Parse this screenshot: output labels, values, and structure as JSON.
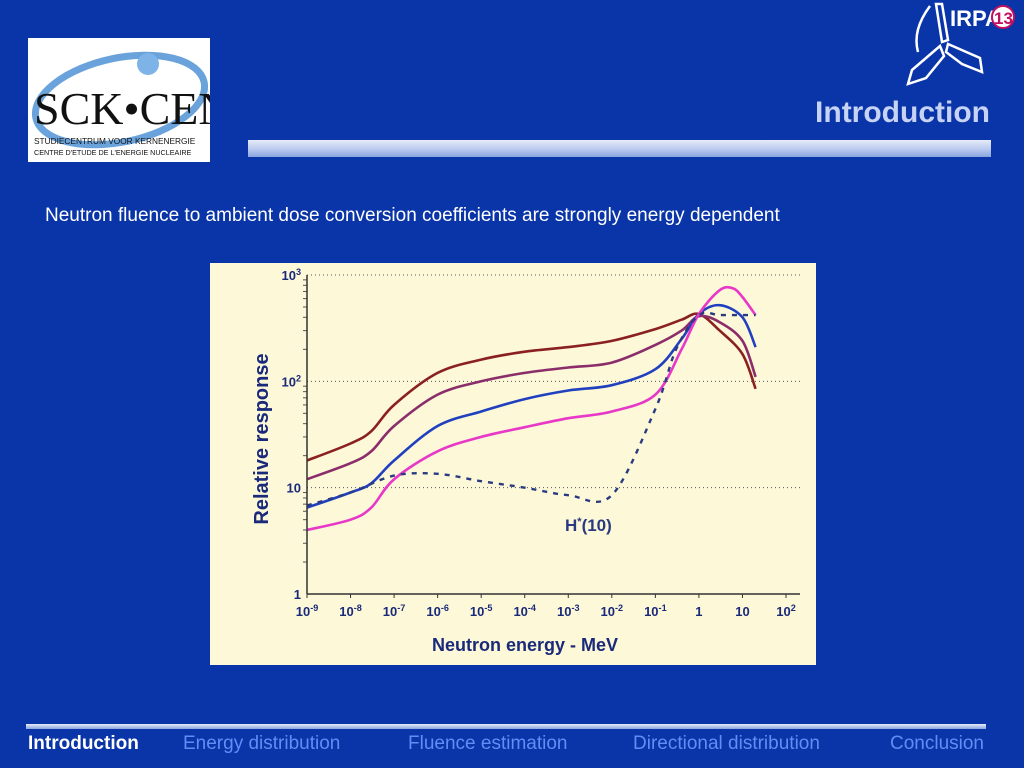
{
  "logo": {
    "name": "SCK•CEN",
    "line1": "STUDIECENTRUM VOOR KERNENERGIE",
    "line2": "CENTRE D'ETUDE DE L'ENERGIE NUCLEAIRE"
  },
  "irpa": {
    "text": "IRPA",
    "number": "13"
  },
  "header": {
    "title": "Introduction"
  },
  "body": {
    "subtitle": "Neutron fluence to ambient dose conversion coefficients are strongly energy dependent"
  },
  "chart_data": {
    "type": "line",
    "xlabel": "Neutron energy - MeV",
    "ylabel": "Relative response",
    "x_scale": "log",
    "y_scale": "log",
    "xlim": [
      1e-09,
      100
    ],
    "ylim": [
      1,
      1000
    ],
    "x_ticks": [
      "10-9",
      "10-8",
      "10-7",
      "10-6",
      "10-5",
      "10-4",
      "10-3",
      "10-2",
      "10-1",
      "1",
      "10",
      "102"
    ],
    "y_ticks": [
      "1",
      "10",
      "102",
      "103"
    ],
    "annotation": "H*(10)",
    "series": [
      {
        "color": "#8b2020",
        "style": "solid",
        "points": [
          [
            1e-09,
            18
          ],
          [
            1e-08,
            26
          ],
          [
            3e-08,
            34
          ],
          [
            1e-07,
            60
          ],
          [
            1e-06,
            120
          ],
          [
            1e-05,
            160
          ],
          [
            0.0001,
            190
          ],
          [
            0.001,
            210
          ],
          [
            0.01,
            240
          ],
          [
            0.1,
            310
          ],
          [
            0.4,
            380
          ],
          [
            1,
            430
          ],
          [
            3,
            300
          ],
          [
            10,
            180
          ],
          [
            20,
            85
          ]
        ]
      },
      {
        "color": "#8b2d6b",
        "style": "solid",
        "points": [
          [
            1e-09,
            12
          ],
          [
            1e-08,
            17
          ],
          [
            3e-08,
            22
          ],
          [
            1e-07,
            38
          ],
          [
            1e-06,
            75
          ],
          [
            1e-05,
            100
          ],
          [
            0.0001,
            120
          ],
          [
            0.001,
            135
          ],
          [
            0.01,
            150
          ],
          [
            0.1,
            220
          ],
          [
            0.4,
            300
          ],
          [
            1,
            410
          ],
          [
            3,
            360
          ],
          [
            10,
            240
          ],
          [
            20,
            110
          ]
        ]
      },
      {
        "color": "#2040c0",
        "style": "solid",
        "points": [
          [
            1e-09,
            6.5
          ],
          [
            1e-08,
            9
          ],
          [
            3e-08,
            11
          ],
          [
            1e-07,
            18
          ],
          [
            1e-06,
            38
          ],
          [
            1e-05,
            52
          ],
          [
            0.0001,
            68
          ],
          [
            0.001,
            82
          ],
          [
            0.01,
            92
          ],
          [
            0.1,
            130
          ],
          [
            0.4,
            250
          ],
          [
            1,
            430
          ],
          [
            3,
            520
          ],
          [
            10,
            400
          ],
          [
            20,
            210
          ]
        ]
      },
      {
        "color": "#e838c8",
        "style": "solid",
        "points": [
          [
            1e-09,
            4
          ],
          [
            1e-08,
            5
          ],
          [
            3e-08,
            6.5
          ],
          [
            1e-07,
            12
          ],
          [
            1e-06,
            22
          ],
          [
            1e-05,
            30
          ],
          [
            0.0001,
            37
          ],
          [
            0.001,
            45
          ],
          [
            0.01,
            52
          ],
          [
            0.1,
            75
          ],
          [
            0.4,
            200
          ],
          [
            1,
            430
          ],
          [
            3,
            720
          ],
          [
            6,
            750
          ],
          [
            10,
            620
          ],
          [
            20,
            420
          ]
        ]
      },
      {
        "color": "#2a3a80",
        "style": "dashed",
        "name": "H*(10)",
        "points": [
          [
            1e-09,
            6.8
          ],
          [
            1e-08,
            9
          ],
          [
            1e-07,
            13
          ],
          [
            1e-06,
            13.5
          ],
          [
            1e-05,
            11.5
          ],
          [
            0.0001,
            10
          ],
          [
            0.001,
            8.5
          ],
          [
            0.01,
            8.5
          ],
          [
            0.1,
            55
          ],
          [
            0.3,
            200
          ],
          [
            1,
            420
          ],
          [
            3,
            420
          ],
          [
            10,
            420
          ],
          [
            20,
            420
          ]
        ]
      }
    ]
  },
  "footer": {
    "nav": [
      {
        "label": "Introduction",
        "active": true
      },
      {
        "label": "Energy distribution",
        "active": false
      },
      {
        "label": "Fluence estimation",
        "active": false
      },
      {
        "label": "Directional distribution",
        "active": false
      },
      {
        "label": "Conclusion",
        "active": false
      }
    ]
  }
}
